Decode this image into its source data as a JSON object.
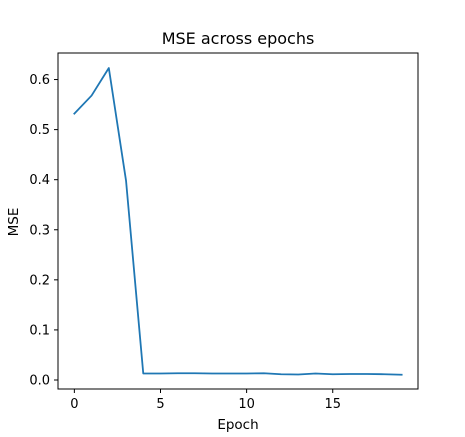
{
  "chart_data": {
    "type": "line",
    "title": "MSE across epochs",
    "xlabel": "Epoch",
    "ylabel": "MSE",
    "xlim": [
      -0.95,
      19.95
    ],
    "ylim": [
      -0.018,
      0.653
    ],
    "xticks": [
      0,
      5,
      10,
      15
    ],
    "xtick_labels": [
      "0",
      "5",
      "10",
      "15"
    ],
    "yticks": [
      0.0,
      0.1,
      0.2,
      0.3,
      0.4,
      0.5,
      0.6
    ],
    "ytick_labels": [
      "0.0",
      "0.1",
      "0.2",
      "0.3",
      "0.4",
      "0.5",
      "0.6"
    ],
    "grid": false,
    "legend": "none",
    "series": [
      {
        "color": "#1f77b4",
        "x": [
          0,
          1,
          2,
          3,
          4,
          5,
          6,
          7,
          8,
          9,
          10,
          11,
          12,
          13,
          14,
          15,
          16,
          17,
          18,
          19
        ],
        "y": [
          0.532,
          0.568,
          0.623,
          0.398,
          0.013,
          0.013,
          0.0135,
          0.0135,
          0.013,
          0.013,
          0.013,
          0.0135,
          0.0115,
          0.011,
          0.013,
          0.0115,
          0.012,
          0.012,
          0.0115,
          0.0105
        ]
      }
    ]
  }
}
